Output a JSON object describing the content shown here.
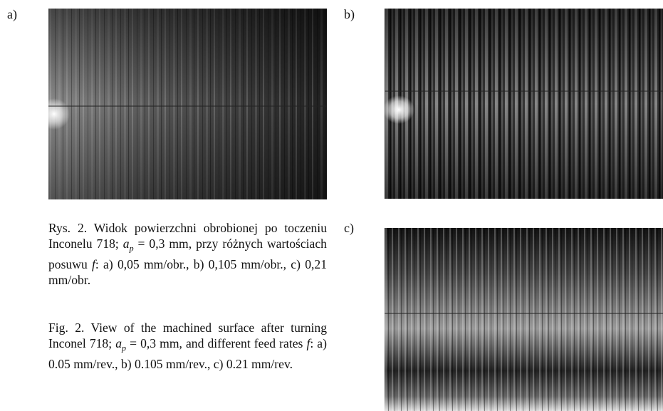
{
  "figure": {
    "panels": [
      {
        "label": "a)"
      },
      {
        "label": "b)"
      },
      {
        "label": "c)"
      }
    ],
    "caption_pl": [
      "Rys. 2. Widok powierzchni obrobionej po toczeniu Inconelu 718; ",
      "a",
      "p",
      " = 0,3 mm, przy różnych wartościach posuwu ",
      "f",
      ": a) 0,05 mm/obr., b) 0,105 mm/obr., c) 0,21 mm/obr."
    ],
    "caption_en": [
      "Fig. 2. View of the machined surface af­ter turning Inconel 718; ",
      "a",
      "p",
      " = 0,3 mm, and different feed rates ",
      "f",
      ": a) 0.05 mm/rev., b) 0.105 mm/rev., c) 0.21 mm/rev."
    ]
  }
}
